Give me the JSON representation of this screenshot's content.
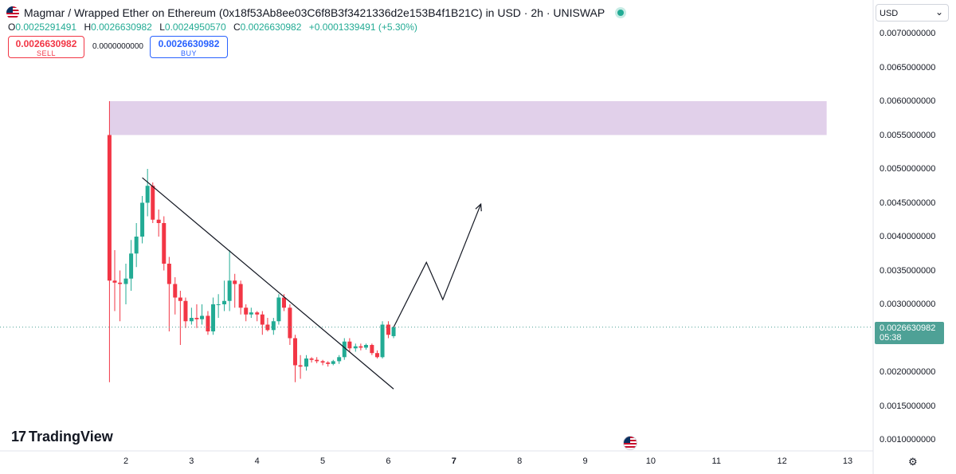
{
  "header": {
    "title": "Magmar / Wrapped Ether on Ethereum (0x18f53Ab8ee03C6f8B3f3421336d2e153B4f1B21C) in USD · 2h · UNISWAP",
    "ohlc": {
      "o_label": "O",
      "o_value": "0.0025291491",
      "h_label": "H",
      "h_value": "0.0026630982",
      "l_label": "L",
      "l_value": "0.0024950570",
      "c_label": "C",
      "c_value": "0.0026630982",
      "change": "+0.0001339491 (+5.30%)"
    }
  },
  "trade": {
    "sell_price": "0.0026630982",
    "sell_label": "SELL",
    "spread": "0.0000000000",
    "buy_price": "0.0026630982",
    "buy_label": "BUY"
  },
  "currency": {
    "selected": "USD"
  },
  "price_tag": {
    "price": "0.0026630982",
    "countdown": "05:38"
  },
  "branding": {
    "logo_mark": "17",
    "logo_text": "TradingView"
  },
  "chart_data": {
    "type": "candlestick",
    "y_axis_ticks": [
      "0.0070000000",
      "0.0065000000",
      "0.0060000000",
      "0.0055000000",
      "0.0050000000",
      "0.0045000000",
      "0.0040000000",
      "0.0035000000",
      "0.0030000000",
      "0.0020000000",
      "0.0015000000",
      "0.0010000000"
    ],
    "x_axis_ticks": [
      "2",
      "3",
      "4",
      "5",
      "6",
      "7",
      "8",
      "9",
      "10",
      "11",
      "12",
      "13"
    ],
    "x_axis_bold": "7",
    "ylim": [
      0.00085,
      0.0075
    ],
    "xlim": [
      1.25,
      13.8
    ],
    "last_price": 0.0026630982,
    "colors": {
      "up": "#22ab94",
      "down": "#f23645",
      "zone": "#e1d0ea",
      "line": "#131722"
    },
    "candles": [
      {
        "x": 1.75,
        "o": 0.0055,
        "h": 0.006,
        "l": 0.00185,
        "c": 0.00335
      },
      {
        "x": 1.83,
        "o": 0.00335,
        "h": 0.0038,
        "l": 0.0029,
        "c": 0.00332
      },
      {
        "x": 1.91,
        "o": 0.00332,
        "h": 0.0035,
        "l": 0.00275,
        "c": 0.0033
      },
      {
        "x": 2.0,
        "o": 0.0033,
        "h": 0.0036,
        "l": 0.003,
        "c": 0.00338
      },
      {
        "x": 2.08,
        "o": 0.00338,
        "h": 0.00395,
        "l": 0.0032,
        "c": 0.00375
      },
      {
        "x": 2.16,
        "o": 0.00375,
        "h": 0.0042,
        "l": 0.00355,
        "c": 0.004
      },
      {
        "x": 2.25,
        "o": 0.004,
        "h": 0.0046,
        "l": 0.0039,
        "c": 0.0045
      },
      {
        "x": 2.33,
        "o": 0.0045,
        "h": 0.005,
        "l": 0.0043,
        "c": 0.00475
      },
      {
        "x": 2.41,
        "o": 0.00475,
        "h": 0.0048,
        "l": 0.0042,
        "c": 0.00425
      },
      {
        "x": 2.5,
        "o": 0.00425,
        "h": 0.0044,
        "l": 0.004,
        "c": 0.0042
      },
      {
        "x": 2.58,
        "o": 0.0042,
        "h": 0.0043,
        "l": 0.0035,
        "c": 0.0036
      },
      {
        "x": 2.66,
        "o": 0.0036,
        "h": 0.0037,
        "l": 0.0026,
        "c": 0.0033
      },
      {
        "x": 2.75,
        "o": 0.0033,
        "h": 0.0034,
        "l": 0.00285,
        "c": 0.0031
      },
      {
        "x": 2.83,
        "o": 0.0031,
        "h": 0.0032,
        "l": 0.0024,
        "c": 0.00305
      },
      {
        "x": 2.91,
        "o": 0.00305,
        "h": 0.0031,
        "l": 0.00265,
        "c": 0.00275
      },
      {
        "x": 3.0,
        "o": 0.00275,
        "h": 0.00295,
        "l": 0.0027,
        "c": 0.0028
      },
      {
        "x": 3.08,
        "o": 0.0028,
        "h": 0.003,
        "l": 0.00265,
        "c": 0.00278
      },
      {
        "x": 3.16,
        "o": 0.00278,
        "h": 0.003,
        "l": 0.0027,
        "c": 0.00283
      },
      {
        "x": 3.25,
        "o": 0.00283,
        "h": 0.0029,
        "l": 0.00255,
        "c": 0.0026
      },
      {
        "x": 3.33,
        "o": 0.0026,
        "h": 0.0031,
        "l": 0.00255,
        "c": 0.003
      },
      {
        "x": 3.41,
        "o": 0.003,
        "h": 0.00315,
        "l": 0.0028,
        "c": 0.003
      },
      {
        "x": 3.5,
        "o": 0.003,
        "h": 0.00335,
        "l": 0.0029,
        "c": 0.00305
      },
      {
        "x": 3.58,
        "o": 0.00305,
        "h": 0.0038,
        "l": 0.0029,
        "c": 0.00335
      },
      {
        "x": 3.66,
        "o": 0.00335,
        "h": 0.00345,
        "l": 0.00295,
        "c": 0.0033
      },
      {
        "x": 3.75,
        "o": 0.0033,
        "h": 0.00335,
        "l": 0.00285,
        "c": 0.00295
      },
      {
        "x": 3.83,
        "o": 0.00295,
        "h": 0.003,
        "l": 0.00275,
        "c": 0.00285
      },
      {
        "x": 3.91,
        "o": 0.00285,
        "h": 0.00295,
        "l": 0.0028,
        "c": 0.00288
      },
      {
        "x": 4.0,
        "o": 0.00288,
        "h": 0.0029,
        "l": 0.00275,
        "c": 0.00285
      },
      {
        "x": 4.08,
        "o": 0.00285,
        "h": 0.0029,
        "l": 0.00255,
        "c": 0.0027
      },
      {
        "x": 4.16,
        "o": 0.0027,
        "h": 0.0028,
        "l": 0.0026,
        "c": 0.00262
      },
      {
        "x": 4.25,
        "o": 0.00262,
        "h": 0.0028,
        "l": 0.00255,
        "c": 0.00275
      },
      {
        "x": 4.33,
        "o": 0.00275,
        "h": 0.00315,
        "l": 0.0027,
        "c": 0.0031
      },
      {
        "x": 4.41,
        "o": 0.0031,
        "h": 0.00315,
        "l": 0.0029,
        "c": 0.00295
      },
      {
        "x": 4.5,
        "o": 0.00295,
        "h": 0.003,
        "l": 0.0024,
        "c": 0.0025
      },
      {
        "x": 4.58,
        "o": 0.0025,
        "h": 0.00255,
        "l": 0.00185,
        "c": 0.0021
      },
      {
        "x": 4.66,
        "o": 0.0021,
        "h": 0.00225,
        "l": 0.0019,
        "c": 0.00208
      },
      {
        "x": 4.75,
        "o": 0.00208,
        "h": 0.00225,
        "l": 0.00202,
        "c": 0.0022
      },
      {
        "x": 4.83,
        "o": 0.0022,
        "h": 0.00222,
        "l": 0.00214,
        "c": 0.00218
      },
      {
        "x": 4.91,
        "o": 0.00218,
        "h": 0.00222,
        "l": 0.00213,
        "c": 0.00216
      },
      {
        "x": 5.0,
        "o": 0.00216,
        "h": 0.00218,
        "l": 0.0021,
        "c": 0.00214
      },
      {
        "x": 5.08,
        "o": 0.00214,
        "h": 0.00216,
        "l": 0.00208,
        "c": 0.00212
      },
      {
        "x": 5.16,
        "o": 0.00212,
        "h": 0.00218,
        "l": 0.0021,
        "c": 0.00216
      },
      {
        "x": 5.25,
        "o": 0.00216,
        "h": 0.00225,
        "l": 0.00212,
        "c": 0.00222
      },
      {
        "x": 5.33,
        "o": 0.00222,
        "h": 0.0025,
        "l": 0.00218,
        "c": 0.00245
      },
      {
        "x": 5.41,
        "o": 0.00245,
        "h": 0.0025,
        "l": 0.0023,
        "c": 0.00235
      },
      {
        "x": 5.5,
        "o": 0.00235,
        "h": 0.00242,
        "l": 0.0023,
        "c": 0.00238
      },
      {
        "x": 5.58,
        "o": 0.00238,
        "h": 0.00242,
        "l": 0.00232,
        "c": 0.00236
      },
      {
        "x": 5.66,
        "o": 0.00236,
        "h": 0.00242,
        "l": 0.00233,
        "c": 0.0024
      },
      {
        "x": 5.75,
        "o": 0.0024,
        "h": 0.00242,
        "l": 0.00225,
        "c": 0.00228
      },
      {
        "x": 5.83,
        "o": 0.00228,
        "h": 0.00232,
        "l": 0.0022,
        "c": 0.00222
      },
      {
        "x": 5.91,
        "o": 0.00222,
        "h": 0.00275,
        "l": 0.0022,
        "c": 0.0027
      },
      {
        "x": 6.0,
        "o": 0.0027,
        "h": 0.00275,
        "l": 0.0025,
        "c": 0.00255
      },
      {
        "x": 6.08,
        "o": 0.00253,
        "h": 0.00267,
        "l": 0.0025,
        "c": 0.00266
      }
    ],
    "zone": {
      "x_start": 1.75,
      "x_end": 12.68,
      "y_low": 0.0055,
      "y_high": 0.006
    },
    "trendline": [
      {
        "x": 2.25,
        "y": 0.00487
      },
      {
        "x": 6.08,
        "y": 0.00175
      }
    ],
    "projection": [
      {
        "x": 6.08,
        "y": 0.00266
      },
      {
        "x": 6.58,
        "y": 0.00362
      },
      {
        "x": 6.83,
        "y": 0.00307
      },
      {
        "x": 7.41,
        "y": 0.00448
      }
    ]
  }
}
